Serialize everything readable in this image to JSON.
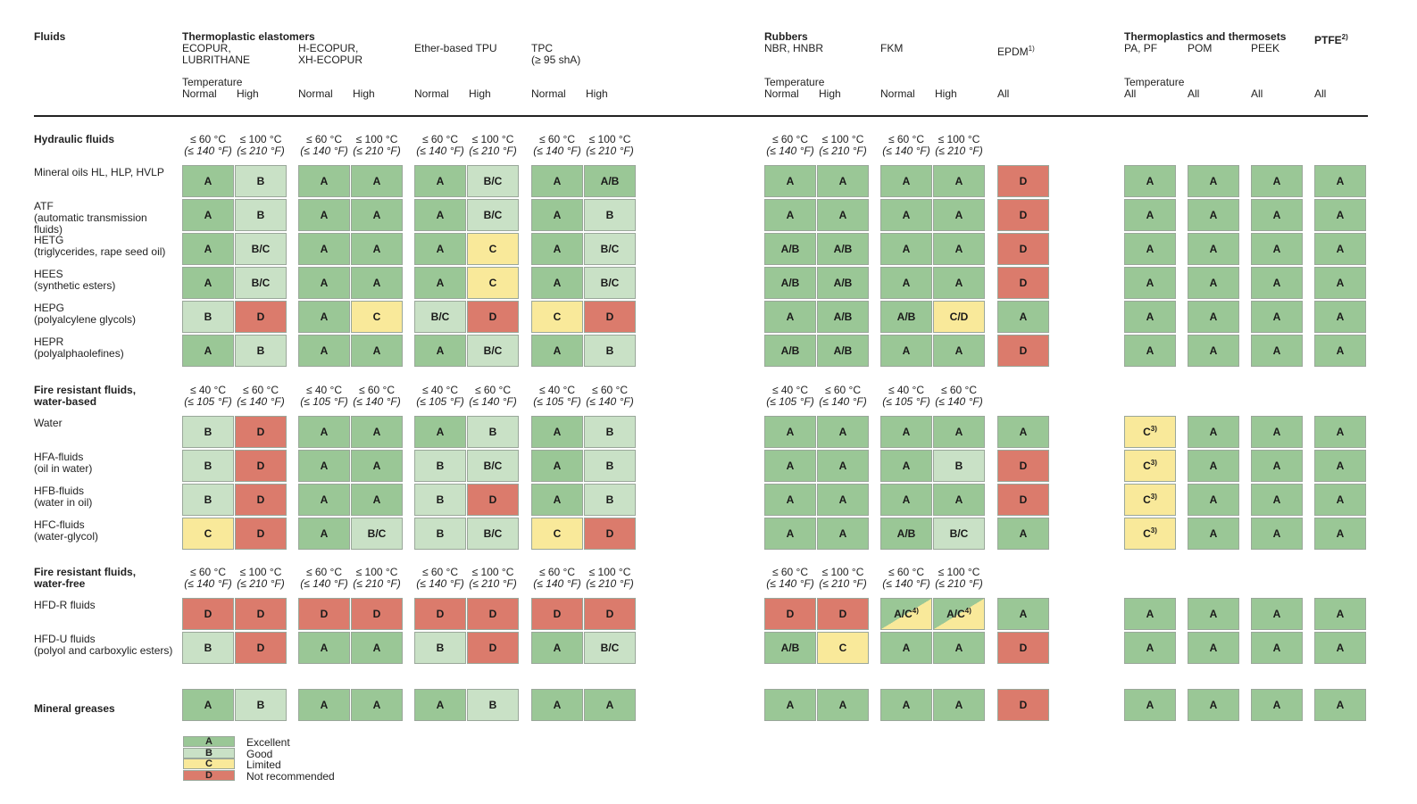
{
  "colors": {
    "A": "#9ac796",
    "B": "#c9e1c6",
    "C": "#f9e99a",
    "D": "#db7b6c",
    "border": "#9aa79a"
  },
  "header": {
    "fluids": "Fluids",
    "tpe_group": "Thermoplastic elastomers",
    "rubbers_group": "Rubbers",
    "tpts_group": "Thermoplastics and thermosets",
    "ptfe_group": "PTFE",
    "ptfe_note": "2)",
    "temperature_label": "Temperature",
    "materials": [
      {
        "id": "ecopur",
        "name": "ECOPUR,\nLUBRITHANE"
      },
      {
        "id": "hecopur",
        "name": "H-ECOPUR,\nXH-ECOPUR"
      },
      {
        "id": "ether",
        "name": "Ether-based TPU"
      },
      {
        "id": "tpc",
        "name": "TPC\n(≥ 95 shA)"
      },
      {
        "id": "nbr",
        "name": "NBR, HNBR"
      },
      {
        "id": "fkm",
        "name": "FKM"
      },
      {
        "id": "epdm",
        "name": "EPDM",
        "note": "1)"
      },
      {
        "id": "pa",
        "name": "PA, PF"
      },
      {
        "id": "pom",
        "name": "POM"
      },
      {
        "id": "peek",
        "name": "PEEK"
      }
    ],
    "normal": "Normal",
    "high": "High",
    "all": "All"
  },
  "sections": [
    {
      "id": "hydraulic",
      "title": "Hydraulic fluids",
      "temp_normal": "≤ 60 °C",
      "temp_normal_f": "(≤ 140 °F)",
      "temp_high": "≤ 100 °C",
      "temp_high_f": "(≤ 210 °F)",
      "rows": [
        {
          "name": "Mineral oils HL, HLP, HVLP",
          "cells": [
            "A",
            "B",
            "A",
            "A",
            "A",
            "B/C",
            "A",
            "A/B",
            "A",
            "A",
            "A",
            "A",
            "D",
            "A",
            "A",
            "A",
            "A"
          ]
        },
        {
          "name": "ATF\n(automatic transmission\nfluids)",
          "cells": [
            "A",
            "B",
            "A",
            "A",
            "A",
            "B/C",
            "A",
            "B",
            "A",
            "A",
            "A",
            "A",
            "D",
            "A",
            "A",
            "A",
            "A"
          ]
        },
        {
          "name": "HETG\n(triglycerides, rape seed oil)",
          "cells": [
            "A",
            "B/C",
            "A",
            "A",
            "A",
            "C",
            "A",
            "B/C",
            "A/B",
            "A/B",
            "A",
            "A",
            "D",
            "A",
            "A",
            "A",
            "A"
          ]
        },
        {
          "name": "HEES\n(synthetic esters)",
          "cells": [
            "A",
            "B/C",
            "A",
            "A",
            "A",
            "C",
            "A",
            "B/C",
            "A/B",
            "A/B",
            "A",
            "A",
            "D",
            "A",
            "A",
            "A",
            "A"
          ]
        },
        {
          "name": "HEPG\n(polyalcylene glycols)",
          "cells": [
            "B",
            "D",
            "A",
            "C",
            "B/C",
            "D",
            "C",
            "D",
            "A",
            "A/B",
            "A/B",
            "C/D",
            "A",
            "A",
            "A",
            "A",
            "A"
          ]
        },
        {
          "name": "HEPR\n(polyalphaolefines)",
          "cells": [
            "A",
            "B",
            "A",
            "A",
            "A",
            "B/C",
            "A",
            "B",
            "A/B",
            "A/B",
            "A",
            "A",
            "D",
            "A",
            "A",
            "A",
            "A"
          ]
        }
      ]
    },
    {
      "id": "water",
      "title": "Fire resistant fluids,\nwater-based",
      "temp_normal": "≤ 40 °C",
      "temp_normal_f": "(≤ 105 °F)",
      "temp_high": "≤ 60 °C",
      "temp_high_f": "(≤ 140 °F)",
      "rows": [
        {
          "name": "Water",
          "cells": [
            "B",
            "D",
            "A",
            "A",
            "A",
            "B",
            "A",
            "B",
            "A",
            "A",
            "A",
            "A",
            "A",
            "C3",
            "A",
            "A",
            "A"
          ]
        },
        {
          "name": "HFA-fluids\n(oil in water)",
          "cells": [
            "B",
            "D",
            "A",
            "A",
            "B",
            "B/C",
            "A",
            "B",
            "A",
            "A",
            "A",
            "B",
            "D",
            "C3",
            "A",
            "A",
            "A"
          ]
        },
        {
          "name": "HFB-fluids\n(water in oil)",
          "cells": [
            "B",
            "D",
            "A",
            "A",
            "B",
            "D",
            "A",
            "B",
            "A",
            "A",
            "A",
            "A",
            "D",
            "C3",
            "A",
            "A",
            "A"
          ]
        },
        {
          "name": "HFC-fluids\n(water-glycol)",
          "cells": [
            "C",
            "D",
            "A",
            "B/C",
            "B",
            "B/C",
            "C",
            "D",
            "A",
            "A",
            "A/B",
            "B/C",
            "A",
            "C3",
            "A",
            "A",
            "A"
          ]
        }
      ]
    },
    {
      "id": "waterfree",
      "title": "Fire resistant fluids,\nwater-free",
      "temp_normal": "≤ 60 °C",
      "temp_normal_f": "(≤ 140 °F)",
      "temp_high": "≤ 100 °C",
      "temp_high_f": "(≤ 210 °F)",
      "rows": [
        {
          "name": "HFD-R fluids",
          "cells": [
            "D",
            "D",
            "D",
            "D",
            "D",
            "D",
            "D",
            "D",
            "D",
            "D",
            "AC4",
            "AC4",
            "A",
            "A",
            "A",
            "A",
            "A"
          ]
        },
        {
          "name": "HFD-U fluids\n(polyol and carboxylic esters)",
          "cells": [
            "B",
            "D",
            "A",
            "A",
            "B",
            "D",
            "A",
            "B/C",
            "A/B",
            "C",
            "A",
            "A",
            "D",
            "A",
            "A",
            "A",
            "A"
          ]
        }
      ]
    },
    {
      "id": "greases",
      "title": "Mineral greases",
      "rows": [
        {
          "name": "",
          "cells": [
            "A",
            "B",
            "A",
            "A",
            "A",
            "B",
            "A",
            "A",
            "A",
            "A",
            "A",
            "A",
            "D",
            "A",
            "A",
            "A",
            "A"
          ]
        }
      ]
    }
  ],
  "footnotes": {
    "c3_label": "C",
    "c3_note": "3)",
    "ac4_label": "A/C",
    "ac4_note": "4)"
  },
  "legend": [
    {
      "grade": "A",
      "label": "Excellent"
    },
    {
      "grade": "B",
      "label": "Good"
    },
    {
      "grade": "C",
      "label": "Limited"
    },
    {
      "grade": "D",
      "label": "Not recommended"
    }
  ]
}
